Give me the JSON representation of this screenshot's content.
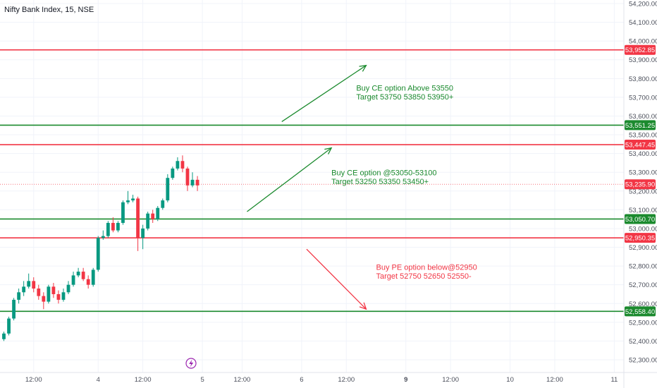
{
  "chart_data": {
    "type": "candlestick",
    "title": "Nifty Bank Index, 15, NSE",
    "ylim": [
      52250,
      54230
    ],
    "y_ticks": [
      {
        "value": 54200,
        "label": "54,200.00"
      },
      {
        "value": 54100,
        "label": "54,100.00"
      },
      {
        "value": 54000,
        "label": "54,000.00"
      },
      {
        "value": 53900,
        "label": "53,900.00"
      },
      {
        "value": 53800,
        "label": "53,800.00"
      },
      {
        "value": 53700,
        "label": "53,700.00"
      },
      {
        "value": 53600,
        "label": "53,600.00"
      },
      {
        "value": 53500,
        "label": "53,500.00"
      },
      {
        "value": 53400,
        "label": "53,400.00"
      },
      {
        "value": 53300,
        "label": "53,300.00"
      },
      {
        "value": 53200,
        "label": "53,200.00"
      },
      {
        "value": 53100,
        "label": "53,100.00"
      },
      {
        "value": 53000,
        "label": "53,000.00"
      },
      {
        "value": 52900,
        "label": "52,900.00"
      },
      {
        "value": 52800,
        "label": "52,800.00"
      },
      {
        "value": 52700,
        "label": "52,700.00"
      },
      {
        "value": 52600,
        "label": "52,600.00"
      },
      {
        "value": 52500,
        "label": "52,500.00"
      },
      {
        "value": 52400,
        "label": "52,400.00"
      },
      {
        "value": 52300,
        "label": "52,300.00"
      }
    ],
    "x_ticks": [
      {
        "bar": 6,
        "label": "12:00",
        "bold": false
      },
      {
        "bar": 19,
        "label": "4",
        "bold": false
      },
      {
        "bar": 28,
        "label": "12:00",
        "bold": false
      },
      {
        "bar": 40,
        "label": "5",
        "bold": false
      },
      {
        "bar": 48,
        "label": "12:00",
        "bold": false
      },
      {
        "bar": 60,
        "label": "6",
        "bold": false
      },
      {
        "bar": 69,
        "label": "12:00",
        "bold": false
      },
      {
        "bar": 81,
        "label": "9",
        "bold": true
      },
      {
        "bar": 90,
        "label": "12:00",
        "bold": false
      },
      {
        "bar": 102,
        "label": "10",
        "bold": false
      },
      {
        "bar": 111,
        "label": "12:00",
        "bold": false
      },
      {
        "bar": 123,
        "label": "11",
        "bold": false
      }
    ],
    "candles": [
      {
        "o": 52410,
        "h": 52450,
        "c": 52440,
        "l": 52400
      },
      {
        "o": 52440,
        "h": 52530,
        "c": 52520,
        "l": 52430
      },
      {
        "o": 52520,
        "h": 52630,
        "c": 52620,
        "l": 52510
      },
      {
        "o": 52620,
        "h": 52680,
        "c": 52660,
        "l": 52600
      },
      {
        "o": 52660,
        "h": 52720,
        "c": 52690,
        "l": 52640
      },
      {
        "o": 52690,
        "h": 52760,
        "c": 52720,
        "l": 52680
      },
      {
        "o": 52720,
        "h": 52740,
        "c": 52680,
        "l": 52660
      },
      {
        "o": 52680,
        "h": 52700,
        "c": 52640,
        "l": 52620
      },
      {
        "o": 52640,
        "h": 52660,
        "c": 52610,
        "l": 52570
      },
      {
        "o": 52610,
        "h": 52700,
        "c": 52690,
        "l": 52600
      },
      {
        "o": 52690,
        "h": 52710,
        "c": 52650,
        "l": 52630
      },
      {
        "o": 52650,
        "h": 52670,
        "c": 52620,
        "l": 52600
      },
      {
        "o": 52620,
        "h": 52680,
        "c": 52660,
        "l": 52610
      },
      {
        "o": 52660,
        "h": 52720,
        "c": 52700,
        "l": 52650
      },
      {
        "o": 52700,
        "h": 52770,
        "c": 52750,
        "l": 52690
      },
      {
        "o": 52750,
        "h": 52790,
        "c": 52770,
        "l": 52740
      },
      {
        "o": 52770,
        "h": 52790,
        "c": 52730,
        "l": 52720
      },
      {
        "o": 52730,
        "h": 52750,
        "c": 52700,
        "l": 52680
      },
      {
        "o": 52700,
        "h": 52790,
        "c": 52780,
        "l": 52690
      },
      {
        "o": 52780,
        "h": 52960,
        "c": 52950,
        "l": 52770
      },
      {
        "o": 52950,
        "h": 52990,
        "c": 52960,
        "l": 52940
      },
      {
        "o": 52960,
        "h": 53040,
        "c": 53030,
        "l": 52950
      },
      {
        "o": 53030,
        "h": 53060,
        "c": 52990,
        "l": 52980
      },
      {
        "o": 52990,
        "h": 53040,
        "c": 53030,
        "l": 52980
      },
      {
        "o": 53030,
        "h": 53150,
        "c": 53140,
        "l": 53020
      },
      {
        "o": 53140,
        "h": 53200,
        "c": 53150,
        "l": 53130
      },
      {
        "o": 53150,
        "h": 53180,
        "c": 53160,
        "l": 53140
      },
      {
        "o": 53160,
        "h": 53170,
        "c": 52950,
        "l": 52880
      },
      {
        "o": 52950,
        "h": 53020,
        "c": 53000,
        "l": 52890
      },
      {
        "o": 53000,
        "h": 53090,
        "c": 53080,
        "l": 52990
      },
      {
        "o": 53080,
        "h": 53100,
        "c": 53050,
        "l": 53030
      },
      {
        "o": 53050,
        "h": 53120,
        "c": 53110,
        "l": 53040
      },
      {
        "o": 53110,
        "h": 53160,
        "c": 53150,
        "l": 53100
      },
      {
        "o": 53150,
        "h": 53290,
        "c": 53270,
        "l": 53140
      },
      {
        "o": 53270,
        "h": 53330,
        "c": 53320,
        "l": 53260
      },
      {
        "o": 53320,
        "h": 53380,
        "c": 53360,
        "l": 53310
      },
      {
        "o": 53360,
        "h": 53390,
        "c": 53320,
        "l": 53300
      },
      {
        "o": 53320,
        "h": 53330,
        "c": 53230,
        "l": 53200
      },
      {
        "o": 53230,
        "h": 53300,
        "c": 53260,
        "l": 53220
      },
      {
        "o": 53260,
        "h": 53280,
        "c": 53230,
        "l": 53200
      }
    ],
    "hlines": [
      {
        "value": 53952.85,
        "label": "53,952.85",
        "color": "#f23645"
      },
      {
        "value": 53551.25,
        "label": "53,551.25",
        "color": "#1b8a2e"
      },
      {
        "value": 53447.45,
        "label": "53,447.45",
        "color": "#f23645"
      },
      {
        "value": 53050.7,
        "label": "53,050.70",
        "color": "#1b8a2e"
      },
      {
        "value": 52950.35,
        "label": "52,950.35",
        "color": "#f23645"
      },
      {
        "value": 52558.4,
        "label": "52,558.40",
        "color": "#1b8a2e"
      }
    ],
    "last_price": {
      "value": 53235.9,
      "label": "53,235.90",
      "color": "#f23645"
    },
    "arrows": [
      {
        "from_bar": 56,
        "from_value": 53570,
        "to_bar": 73,
        "to_value": 53870,
        "color": "#1b8a2e"
      },
      {
        "from_bar": 49,
        "from_value": 53090,
        "to_bar": 66,
        "to_value": 53430,
        "color": "#1b8a2e"
      },
      {
        "from_bar": 61,
        "from_value": 52890,
        "to_bar": 73,
        "to_value": 52570,
        "color": "#f23645"
      }
    ],
    "annotations": [
      {
        "lines": [
          "Buy CE option Above 53550",
          "Target 53750 53850 53950+"
        ],
        "bar": 71,
        "value": 53735,
        "color": "#1b8a2e"
      },
      {
        "lines": [
          "Buy CE option @53050-53100",
          "Target 53250 53350 53450+"
        ],
        "bar": 66,
        "value": 53283,
        "color": "#1b8a2e"
      },
      {
        "lines": [
          "Buy PE option below@52950",
          "Target 52750 52650 52550-"
        ],
        "bar": 75,
        "value": 52780,
        "color": "#f23645"
      }
    ],
    "colors": {
      "up": "#089981",
      "down": "#f23645",
      "grid": "#f0f3fa"
    }
  },
  "event_marker": {
    "icon": "lightning-icon",
    "color": "#9c27b0"
  }
}
